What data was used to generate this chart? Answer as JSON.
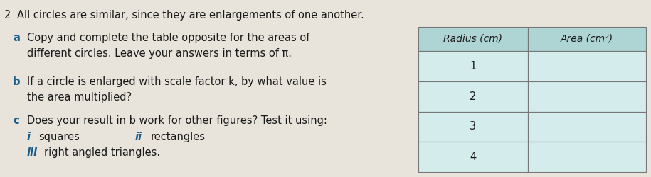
{
  "question_number": "2",
  "main_text": "All circles are similar, since they are enlargements of one another.",
  "part_a_label": "a",
  "part_a_text": "Copy and complete the table opposite for the areas of\ndifferent circles. Leave your answers in terms of π.",
  "part_b_label": "b",
  "part_b_text": "If a circle is enlarged with scale factor k, by what value is\nthe area multiplied?",
  "part_c_label": "c",
  "part_c_text": "Does your result in b work for other figures? Test it using:",
  "sub_i_label": "i",
  "sub_i_text": "squares",
  "sub_ii_label": "ii",
  "sub_ii_text": "rectangles",
  "sub_iii_label": "iii",
  "sub_iii_text": "right angled triangles.",
  "table_headers": [
    "Radius (cm)",
    "Area (cm²)"
  ],
  "table_rows": [
    [
      "1",
      ""
    ],
    [
      "2",
      ""
    ],
    [
      "3",
      ""
    ],
    [
      "4",
      ""
    ]
  ],
  "header_bg": "#aed4d4",
  "row_bg": "#d4ecec",
  "border_color": "#777777",
  "bg_color": "#e8e4dc",
  "text_color": "#1a1a1a",
  "label_color": "#1a5c8a",
  "num_color": "#1a1a1a",
  "body_fontsize": 10.5,
  "label_fontsize": 10.5,
  "table_fontsize": 10.0
}
